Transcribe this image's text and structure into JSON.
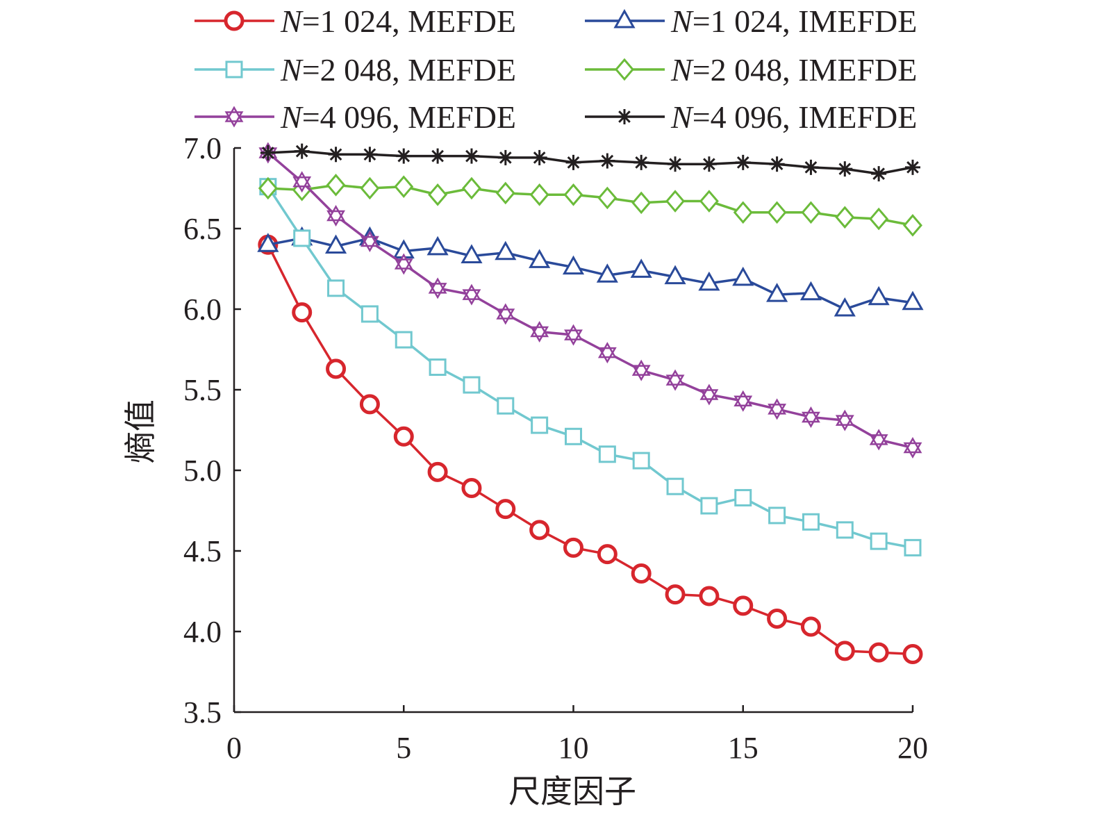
{
  "chart_data": {
    "type": "line",
    "xlabel": "尺度因子",
    "ylabel": "熵值",
    "xlim": [
      0,
      20
    ],
    "ylim": [
      3.5,
      7.0
    ],
    "xticks": [
      0,
      5,
      10,
      15,
      20
    ],
    "yticks": [
      "3.5",
      "4.0",
      "4.5",
      "5.0",
      "5.5",
      "6.0",
      "6.5",
      "7.0"
    ],
    "legend_position": "top",
    "x": [
      1,
      2,
      3,
      4,
      5,
      6,
      7,
      8,
      9,
      10,
      11,
      12,
      13,
      14,
      15,
      16,
      17,
      18,
      19,
      20
    ],
    "series": [
      {
        "name_prefix": "N",
        "name_rest": "=1 024, MEFDE",
        "color": "#d7262d",
        "marker": "circle",
        "values": [
          6.4,
          5.98,
          5.63,
          5.41,
          5.21,
          4.99,
          4.89,
          4.76,
          4.63,
          4.52,
          4.48,
          4.36,
          4.23,
          4.22,
          4.16,
          4.08,
          4.03,
          3.88,
          3.87,
          3.86
        ]
      },
      {
        "name_prefix": "N",
        "name_rest": "=1 024, IMEFDE",
        "color": "#2a4a9a",
        "marker": "triangle",
        "values": [
          6.4,
          6.44,
          6.39,
          6.44,
          6.36,
          6.38,
          6.33,
          6.35,
          6.3,
          6.26,
          6.21,
          6.24,
          6.2,
          6.16,
          6.19,
          6.09,
          6.1,
          6.0,
          6.07,
          6.04
        ]
      },
      {
        "name_prefix": "N",
        "name_rest": "=2 048, MEFDE",
        "color": "#71c8cf",
        "marker": "square",
        "values": [
          6.76,
          6.44,
          6.13,
          5.97,
          5.81,
          5.64,
          5.53,
          5.4,
          5.28,
          5.21,
          5.1,
          5.06,
          4.9,
          4.78,
          4.83,
          4.72,
          4.68,
          4.63,
          4.56,
          4.52
        ]
      },
      {
        "name_prefix": "N",
        "name_rest": "=2 048, IMEFDE",
        "color": "#6bbb3a",
        "marker": "diamond",
        "values": [
          6.75,
          6.74,
          6.77,
          6.75,
          6.76,
          6.71,
          6.75,
          6.72,
          6.71,
          6.71,
          6.69,
          6.66,
          6.67,
          6.67,
          6.6,
          6.6,
          6.6,
          6.57,
          6.56,
          6.52
        ]
      },
      {
        "name_prefix": "N",
        "name_rest": "=4 096, MEFDE",
        "color": "#93419b",
        "marker": "star",
        "values": [
          6.97,
          6.79,
          6.58,
          6.42,
          6.28,
          6.13,
          6.09,
          5.97,
          5.86,
          5.84,
          5.73,
          5.62,
          5.56,
          5.47,
          5.43,
          5.38,
          5.33,
          5.31,
          5.19,
          5.14
        ]
      },
      {
        "name_prefix": "N",
        "name_rest": "=4 096, IMEFDE",
        "color": "#231f20",
        "marker": "asterisk",
        "values": [
          6.97,
          6.98,
          6.96,
          6.96,
          6.95,
          6.95,
          6.95,
          6.94,
          6.94,
          6.91,
          6.92,
          6.91,
          6.9,
          6.9,
          6.91,
          6.9,
          6.88,
          6.87,
          6.84,
          6.88
        ]
      }
    ]
  }
}
